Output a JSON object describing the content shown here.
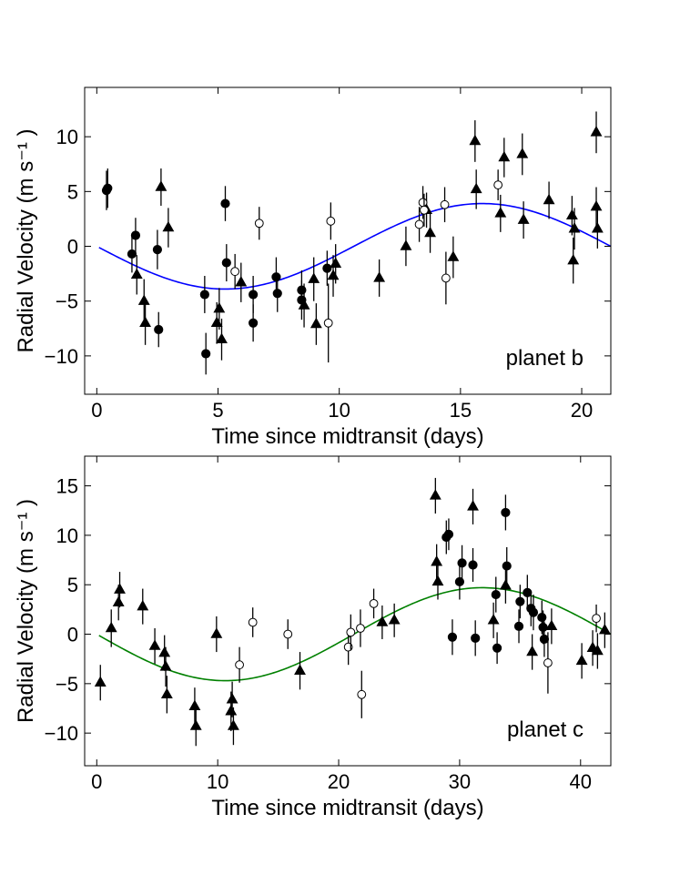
{
  "chart_data": [
    {
      "type": "scatter",
      "panel_label": "planet b",
      "xlabel": "Time since midtransit (days)",
      "ylabel": "Radial Velocity (m s⁻¹ )",
      "xlim": [
        -0.5,
        21.2
      ],
      "ylim": [
        -13.5,
        14.5
      ],
      "xticks": [
        0,
        5,
        10,
        15,
        20
      ],
      "yticks": [
        -10,
        -5,
        0,
        5,
        10
      ],
      "grid": false,
      "model": {
        "color": "#0000ff",
        "amplitude": 3.9,
        "period": 21.2,
        "phase_shift": 0
      },
      "series": [
        {
          "marker": "circle-filled",
          "points": [
            [
              0.4,
              5.1,
              1.8
            ],
            [
              0.45,
              5.3,
              1.8
            ],
            [
              1.45,
              -0.7,
              1.7
            ],
            [
              1.6,
              1.0,
              1.6
            ],
            [
              2.5,
              -0.3,
              1.8
            ],
            [
              2.55,
              -7.6,
              1.6
            ],
            [
              4.45,
              -4.4,
              1.7
            ],
            [
              4.5,
              -9.8,
              1.9
            ],
            [
              5.3,
              3.9,
              1.6
            ],
            [
              5.35,
              -1.5,
              1.7
            ],
            [
              6.45,
              -4.4,
              1.7
            ],
            [
              6.45,
              -7.0,
              1.7
            ],
            [
              7.4,
              -2.8,
              1.8
            ],
            [
              7.45,
              -4.3,
              1.7
            ],
            [
              8.45,
              -4.0,
              1.8
            ],
            [
              8.45,
              -4.9,
              1.8
            ],
            [
              9.5,
              -2.0,
              1.6
            ]
          ]
        },
        {
          "marker": "triangle",
          "points": [
            [
              1.65,
              -2.6,
              1.8
            ],
            [
              1.95,
              -5.0,
              2.0
            ],
            [
              2.0,
              -7.0,
              2.0
            ],
            [
              2.65,
              5.4,
              1.7
            ],
            [
              2.95,
              1.7,
              1.8
            ],
            [
              4.95,
              -7.0,
              1.9
            ],
            [
              5.05,
              -5.7,
              1.9
            ],
            [
              5.15,
              -8.5,
              1.9
            ],
            [
              5.95,
              -3.3,
              1.8
            ],
            [
              8.55,
              -5.4,
              2.0
            ],
            [
              8.95,
              -3.0,
              2.0
            ],
            [
              9.05,
              -7.1,
              1.9
            ],
            [
              9.75,
              -2.7,
              1.9
            ],
            [
              9.85,
              -1.6,
              1.8
            ],
            [
              11.65,
              -2.9,
              1.7
            ],
            [
              12.75,
              0.0,
              1.8
            ],
            [
              13.6,
              3.3,
              1.6
            ],
            [
              13.75,
              1.2,
              1.8
            ],
            [
              14.7,
              -1.0,
              1.9
            ],
            [
              15.6,
              9.6,
              1.9
            ],
            [
              15.65,
              5.2,
              1.8
            ],
            [
              16.65,
              3.0,
              1.7
            ],
            [
              16.8,
              8.1,
              1.8
            ],
            [
              17.55,
              8.4,
              1.9
            ],
            [
              17.6,
              2.4,
              1.7
            ],
            [
              18.65,
              4.2,
              1.7
            ],
            [
              19.6,
              2.8,
              1.8
            ],
            [
              19.65,
              -1.3,
              2.1
            ],
            [
              19.7,
              1.6,
              1.9
            ],
            [
              20.6,
              10.4,
              1.9
            ],
            [
              20.6,
              3.6,
              1.8
            ],
            [
              20.65,
              1.6,
              1.8
            ]
          ]
        },
        {
          "marker": "circle-open",
          "points": [
            [
              5.7,
              -2.3,
              1.6
            ],
            [
              6.7,
              2.1,
              1.5
            ],
            [
              9.55,
              -7.0,
              3.6
            ],
            [
              9.65,
              2.3,
              1.7
            ],
            [
              13.3,
              2.0,
              1.6
            ],
            [
              13.45,
              4.0,
              1.5
            ],
            [
              13.5,
              3.3,
              1.5
            ],
            [
              14.35,
              3.8,
              1.6
            ],
            [
              14.4,
              -2.9,
              2.4
            ],
            [
              16.55,
              5.6,
              1.4
            ]
          ]
        }
      ]
    },
    {
      "type": "scatter",
      "panel_label": "planet c",
      "xlabel": "Time since midtransit (days)",
      "ylabel": "Radial Velocity (m s⁻¹ )",
      "xlim": [
        -1.0,
        42.5
      ],
      "ylim": [
        -13.3,
        18.0
      ],
      "xticks": [
        0,
        10,
        20,
        30,
        40
      ],
      "yticks": [
        -10,
        -5,
        0,
        5,
        10,
        15
      ],
      "grid": false,
      "model": {
        "color": "#008000",
        "amplitude": 4.7,
        "period": 42.5,
        "phase_shift": 0
      },
      "series": [
        {
          "marker": "circle-filled",
          "points": [
            [
              28.9,
              9.8,
              1.7
            ],
            [
              29.1,
              10.1,
              1.6
            ],
            [
              29.4,
              -0.3,
              1.8
            ],
            [
              30.0,
              5.3,
              1.8
            ],
            [
              30.2,
              7.2,
              1.8
            ],
            [
              31.1,
              7.0,
              1.7
            ],
            [
              31.3,
              -0.4,
              1.8
            ],
            [
              33.0,
              4.0,
              1.8
            ],
            [
              33.1,
              -1.4,
              1.6
            ],
            [
              33.8,
              12.3,
              1.8
            ],
            [
              33.9,
              6.9,
              1.9
            ],
            [
              34.9,
              0.8,
              1.7
            ],
            [
              35.0,
              3.3,
              1.7
            ],
            [
              35.6,
              4.2,
              1.8
            ],
            [
              35.9,
              2.6,
              1.8
            ],
            [
              36.1,
              2.2,
              1.8
            ],
            [
              36.8,
              1.7,
              1.7
            ],
            [
              36.9,
              0.7,
              1.7
            ],
            [
              37.0,
              -0.5,
              1.8
            ]
          ]
        },
        {
          "marker": "triangle",
          "points": [
            [
              0.3,
              -4.9,
              1.8
            ],
            [
              1.2,
              0.6,
              1.9
            ],
            [
              1.8,
              3.2,
              1.8
            ],
            [
              1.9,
              4.5,
              1.8
            ],
            [
              3.8,
              2.8,
              1.8
            ],
            [
              4.8,
              -1.2,
              1.8
            ],
            [
              5.6,
              -1.9,
              1.8
            ],
            [
              5.7,
              -3.3,
              2.0
            ],
            [
              5.8,
              -6.1,
              1.9
            ],
            [
              8.1,
              -7.3,
              1.9
            ],
            [
              8.2,
              -9.3,
              2.0
            ],
            [
              9.9,
              0.0,
              1.8
            ],
            [
              11.1,
              -7.8,
              2.0
            ],
            [
              11.2,
              -6.6,
              1.8
            ],
            [
              11.3,
              -9.3,
              1.9
            ],
            [
              16.8,
              -3.7,
              1.9
            ],
            [
              23.6,
              1.2,
              1.7
            ],
            [
              24.6,
              1.4,
              1.7
            ],
            [
              28.0,
              14.0,
              1.8
            ],
            [
              28.1,
              7.3,
              1.8
            ],
            [
              28.2,
              5.3,
              1.8
            ],
            [
              31.1,
              12.9,
              1.8
            ],
            [
              32.8,
              1.4,
              1.8
            ],
            [
              33.8,
              4.9,
              1.8
            ],
            [
              36.0,
              -1.8,
              1.8
            ],
            [
              37.6,
              0.8,
              1.8
            ],
            [
              40.1,
              -2.7,
              1.8
            ],
            [
              41.0,
              -1.4,
              1.8
            ],
            [
              41.4,
              -1.7,
              1.8
            ],
            [
              42.0,
              0.4,
              1.8
            ]
          ]
        },
        {
          "marker": "circle-open",
          "points": [
            [
              11.8,
              -3.1,
              1.8
            ],
            [
              12.9,
              1.2,
              1.5
            ],
            [
              15.8,
              0.0,
              1.5
            ],
            [
              20.8,
              -1.3,
              1.8
            ],
            [
              21.0,
              0.2,
              1.8
            ],
            [
              21.8,
              0.6,
              1.9
            ],
            [
              21.9,
              -6.1,
              2.4
            ],
            [
              22.9,
              3.1,
              1.5
            ],
            [
              37.3,
              -2.9,
              3.1
            ],
            [
              41.3,
              1.6,
              1.4
            ]
          ]
        }
      ]
    }
  ]
}
